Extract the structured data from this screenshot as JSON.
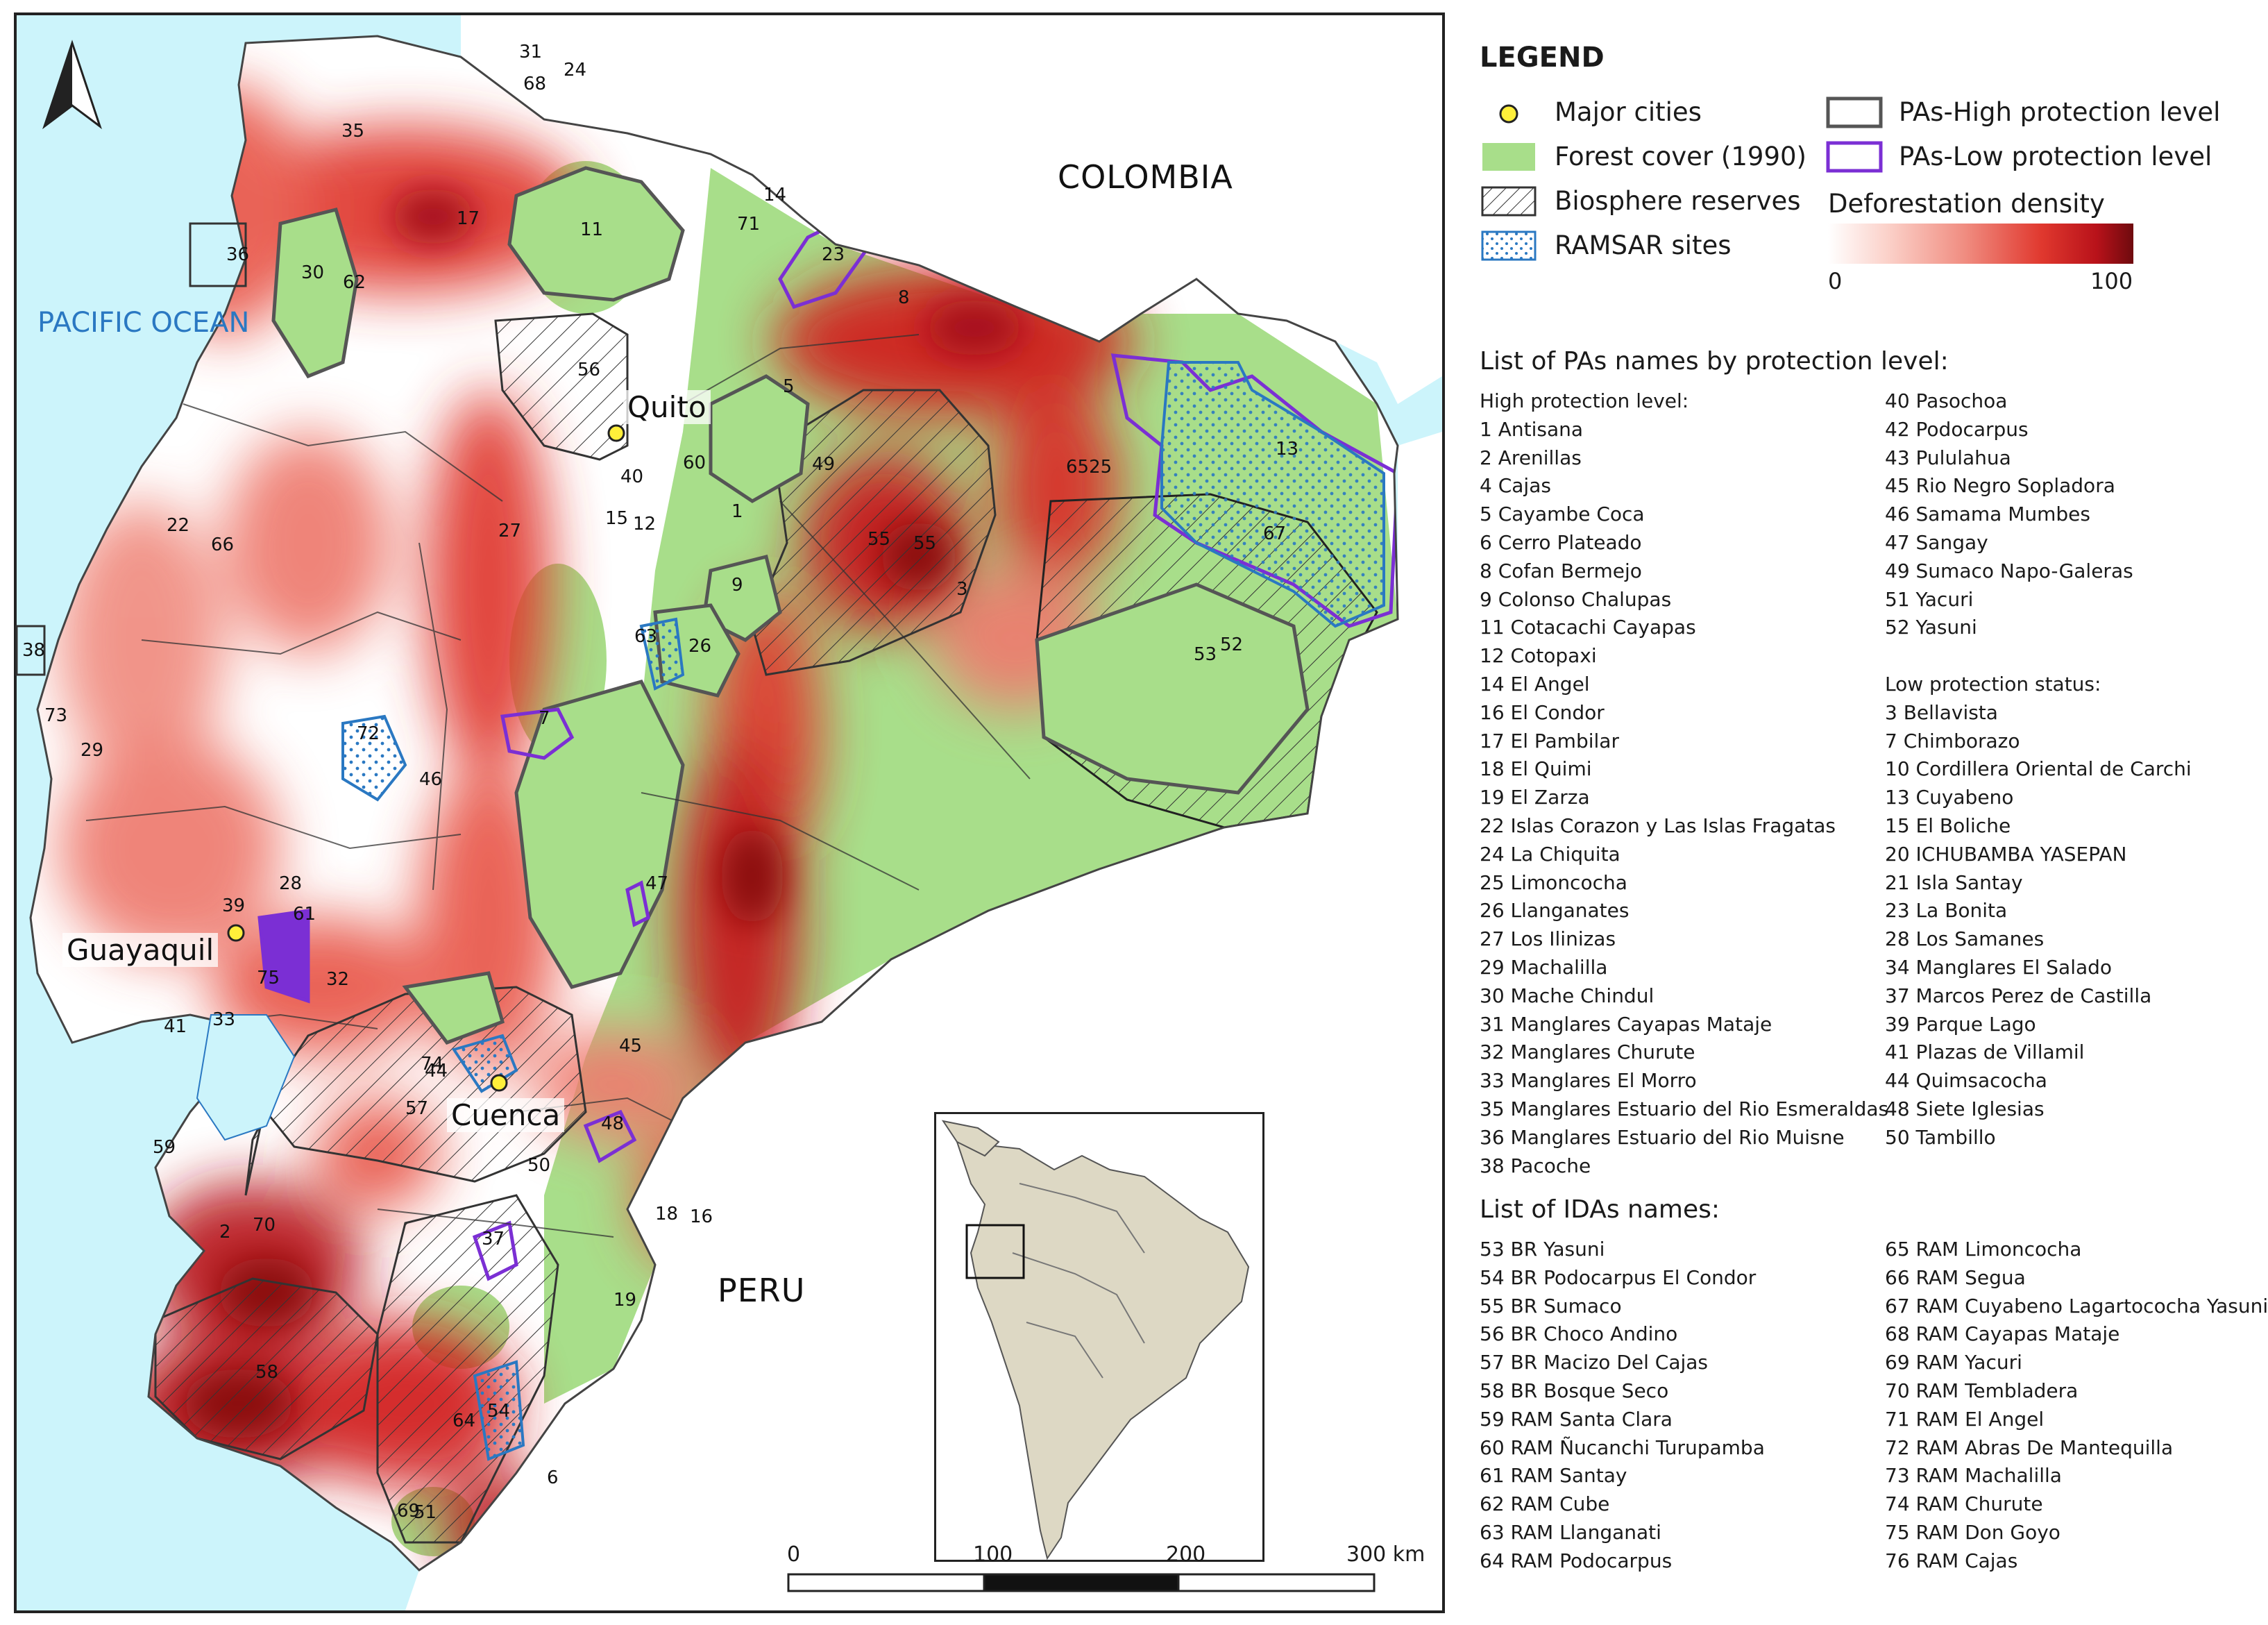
{
  "map": {
    "countries": {
      "colombia": "COLOMBIA",
      "peru": "PERU"
    },
    "ocean": "PACIFIC OCEAN",
    "cities": {
      "quito": "Quito",
      "guayaquil": "Guayaquil",
      "cuenca": "Cuenca"
    },
    "numbers": [
      "31",
      "24",
      "68",
      "35",
      "17",
      "11",
      "14",
      "71",
      "23",
      "36",
      "30",
      "62",
      "8",
      "56",
      "5",
      "49",
      "6525",
      "13",
      "60",
      "40",
      "15",
      "12",
      "27",
      "1",
      "55",
      "67",
      "22",
      "66",
      "9",
      "63",
      "26",
      "53",
      "52",
      "38",
      "73",
      "29",
      "72",
      "7",
      "46",
      "47",
      "28",
      "39",
      "61",
      "75",
      "32",
      "41",
      "33",
      "45",
      "74",
      "57",
      "48",
      "59",
      "50",
      "18",
      "16",
      "70",
      "2",
      "37",
      "19",
      "58",
      "64",
      "54",
      "69",
      "6",
      "44",
      "51",
      "55",
      "3"
    ],
    "scale": {
      "labels": [
        "0",
        "100",
        "200",
        "300 km"
      ]
    },
    "colors": {
      "forest": "#a8de8a",
      "ocean": "#ccf4fb",
      "deforestation_high": "#8b0d10",
      "pa_high": "#555555",
      "pa_low": "#7b2fd4",
      "ramsar": "#2a78c2",
      "city": "#ffef3a"
    }
  },
  "legend": {
    "title": "LEGEND",
    "items": {
      "cities": "Major cities",
      "forest": "Forest cover (1990)",
      "biosphere": "Biosphere reserves",
      "ramsar": "RAMSAR sites",
      "pa_high": "PAs-High protection level",
      "pa_low": "PAs-Low protection level",
      "density": "Deforestation density",
      "density_min": "0",
      "density_max": "100"
    }
  },
  "pa_list": {
    "title": "List of PAs names by protection level:",
    "high_title": "High protection level:",
    "high_col1": [
      "1 Antisana",
      "2 Arenillas",
      "4 Cajas",
      "5 Cayambe Coca",
      "6 Cerro Plateado",
      "8 Cofan Bermejo",
      "9 Colonso Chalupas",
      "11 Cotacachi Cayapas",
      "12 Cotopaxi",
      "14 El Angel",
      "16 El Condor",
      "17 El Pambilar",
      "18 El Quimi",
      "19 El Zarza",
      "22 Islas Corazon y Las Islas Fragatas",
      "24 La Chiquita",
      "25 Limoncocha",
      "26 Llanganates",
      "27 Los Ilinizas",
      "29 Machalilla",
      "30 Mache Chindul",
      "31 Manglares Cayapas Mataje",
      "32 Manglares Churute",
      "33 Manglares El Morro",
      "35 Manglares Estuario del Rio Esmeraldas",
      "36 Manglares Estuario del Rio Muisne",
      "38 Pacoche"
    ],
    "high_col2": [
      "40 Pasochoa",
      "42 Podocarpus",
      "43 Pululahua",
      "45 Rio Negro Sopladora",
      "46 Samama Mumbes",
      "47 Sangay",
      "49 Sumaco Napo-Galeras",
      "51 Yacuri",
      "52 Yasuni"
    ],
    "low_title": "Low protection status:",
    "low_col2": [
      "3 Bellavista",
      "7 Chimborazo",
      "10 Cordillera Oriental de Carchi",
      "13 Cuyabeno",
      "15 El Boliche",
      "20 ICHUBAMBA YASEPAN",
      "21 Isla Santay",
      "23 La Bonita",
      "28 Los Samanes",
      "34 Manglares El Salado",
      "37 Marcos Perez de Castilla",
      "39 Parque Lago",
      "41 Plazas de Villamil",
      "44 Quimsacocha",
      "48 Siete Iglesias",
      "50 Tambillo"
    ]
  },
  "ida_list": {
    "title": "List of IDAs names:",
    "col1": [
      "53 BR Yasuni",
      "54 BR Podocarpus El Condor",
      "55 BR Sumaco",
      "56 BR Choco Andino",
      "57 BR Macizo Del Cajas",
      "58 BR Bosque Seco",
      "59 RAM Santa Clara",
      "60 RAM Ñucanchi Turupamba",
      "61 RAM Santay",
      "62 RAM Cube",
      "63 RAM Llanganati",
      "64 RAM Podocarpus"
    ],
    "col2": [
      "65 RAM Limoncocha",
      "66 RAM Segua",
      "67 RAM Cuyabeno Lagartococha Yasuni",
      "68 RAM Cayapas Mataje",
      "69 RAM Yacuri",
      "70 RAM Tembladera",
      "71 RAM El Angel",
      "72 RAM Abras De Mantequilla",
      "73 RAM Machalilla",
      "74 RAM Churute",
      "75 RAM Don Goyo",
      "76 RAM Cajas"
    ]
  }
}
